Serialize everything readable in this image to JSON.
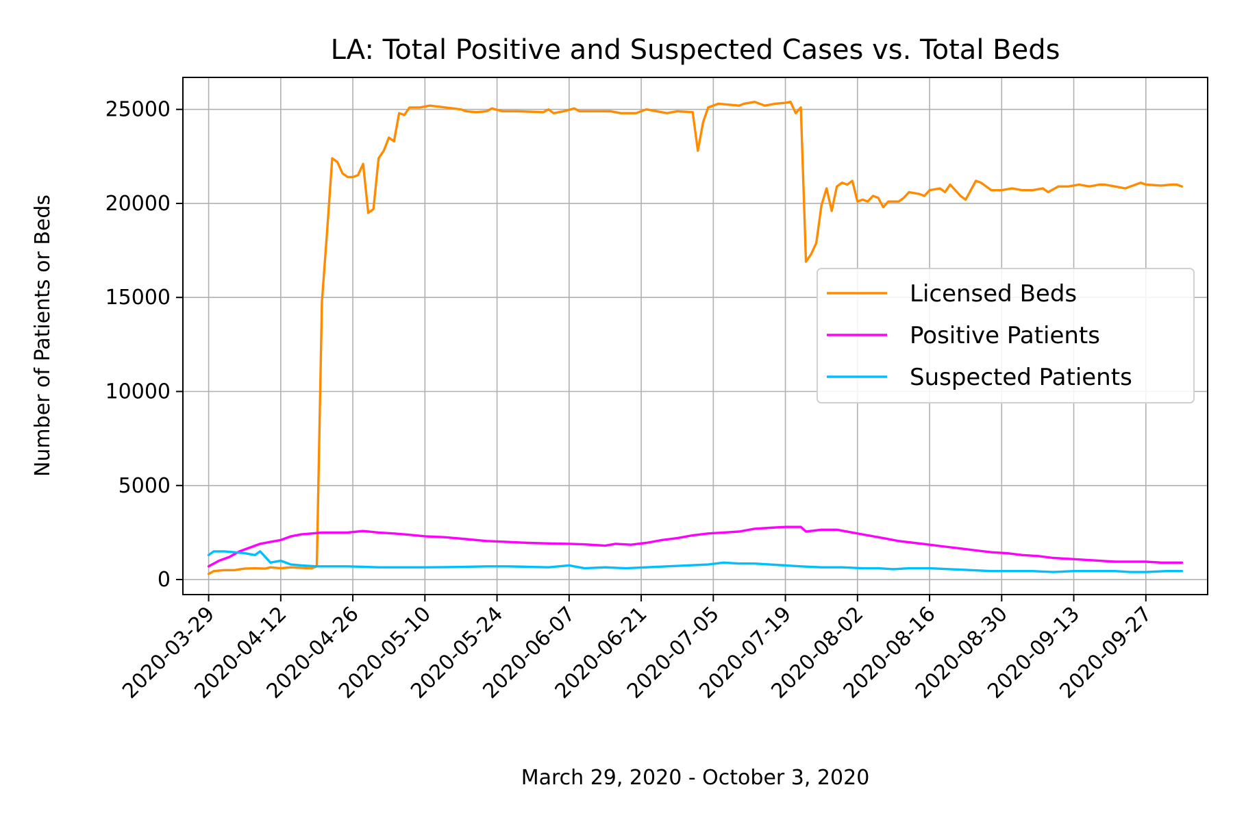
{
  "chart_data": {
    "type": "line",
    "title": "LA: Total Positive and Suspected Cases vs. Total Beds",
    "xlabel": "March 29, 2020 - October 3, 2020",
    "ylabel": "Number of Patients or Beds",
    "x_start": "2020-03-29",
    "x_end": "2020-10-04",
    "xlim": [
      "2020-03-24",
      "2020-10-09"
    ],
    "ylim": [
      -800,
      26700
    ],
    "x_ticks": [
      "2020-03-29",
      "2020-04-12",
      "2020-04-26",
      "2020-05-10",
      "2020-05-24",
      "2020-06-07",
      "2020-06-21",
      "2020-07-05",
      "2020-07-19",
      "2020-08-02",
      "2020-08-16",
      "2020-08-30",
      "2020-09-13",
      "2020-09-27"
    ],
    "y_ticks": [
      0,
      5000,
      10000,
      15000,
      20000,
      25000
    ],
    "grid": true,
    "legend_position": "center-right",
    "series": [
      {
        "name": "Licensed Beds",
        "color": "#ff8c00",
        "points": [
          [
            "2020-03-29",
            300
          ],
          [
            "2020-03-30",
            450
          ],
          [
            "2020-04-01",
            500
          ],
          [
            "2020-04-03",
            500
          ],
          [
            "2020-04-05",
            580
          ],
          [
            "2020-04-07",
            600
          ],
          [
            "2020-04-09",
            580
          ],
          [
            "2020-04-10",
            650
          ],
          [
            "2020-04-12",
            600
          ],
          [
            "2020-04-14",
            650
          ],
          [
            "2020-04-16",
            620
          ],
          [
            "2020-04-18",
            600
          ],
          [
            "2020-04-19",
            700
          ],
          [
            "2020-04-20",
            14800
          ],
          [
            "2020-04-21",
            18500
          ],
          [
            "2020-04-22",
            22400
          ],
          [
            "2020-04-23",
            22200
          ],
          [
            "2020-04-24",
            21600
          ],
          [
            "2020-04-25",
            21400
          ],
          [
            "2020-04-26",
            21400
          ],
          [
            "2020-04-27",
            21500
          ],
          [
            "2020-04-28",
            22100
          ],
          [
            "2020-04-29",
            19500
          ],
          [
            "2020-04-30",
            19700
          ],
          [
            "2020-05-01",
            22400
          ],
          [
            "2020-05-02",
            22800
          ],
          [
            "2020-05-03",
            23500
          ],
          [
            "2020-05-04",
            23300
          ],
          [
            "2020-05-05",
            24800
          ],
          [
            "2020-05-06",
            24700
          ],
          [
            "2020-05-07",
            25100
          ],
          [
            "2020-05-09",
            25100
          ],
          [
            "2020-05-11",
            25200
          ],
          [
            "2020-05-14",
            25100
          ],
          [
            "2020-05-17",
            25000
          ],
          [
            "2020-05-18",
            24900
          ],
          [
            "2020-05-20",
            24850
          ],
          [
            "2020-05-22",
            24900
          ],
          [
            "2020-05-23",
            25050
          ],
          [
            "2020-05-25",
            24900
          ],
          [
            "2020-05-28",
            24900
          ],
          [
            "2020-06-02",
            24850
          ],
          [
            "2020-06-03",
            25000
          ],
          [
            "2020-06-04",
            24800
          ],
          [
            "2020-06-06",
            24900
          ],
          [
            "2020-06-08",
            25050
          ],
          [
            "2020-06-09",
            24900
          ],
          [
            "2020-06-12",
            24900
          ],
          [
            "2020-06-15",
            24900
          ],
          [
            "2020-06-17",
            24800
          ],
          [
            "2020-06-20",
            24800
          ],
          [
            "2020-06-22",
            25000
          ],
          [
            "2020-06-24",
            24900
          ],
          [
            "2020-06-26",
            24800
          ],
          [
            "2020-06-28",
            24900
          ],
          [
            "2020-07-01",
            24850
          ],
          [
            "2020-07-02",
            22800
          ],
          [
            "2020-07-03",
            24300
          ],
          [
            "2020-07-04",
            25100
          ],
          [
            "2020-07-06",
            25300
          ],
          [
            "2020-07-08",
            25250
          ],
          [
            "2020-07-10",
            25200
          ],
          [
            "2020-07-11",
            25300
          ],
          [
            "2020-07-13",
            25400
          ],
          [
            "2020-07-15",
            25200
          ],
          [
            "2020-07-17",
            25300
          ],
          [
            "2020-07-19",
            25350
          ],
          [
            "2020-07-20",
            25400
          ],
          [
            "2020-07-21",
            24800
          ],
          [
            "2020-07-22",
            25100
          ],
          [
            "2020-07-23",
            16900
          ],
          [
            "2020-07-24",
            17300
          ],
          [
            "2020-07-25",
            17900
          ],
          [
            "2020-07-26",
            19900
          ],
          [
            "2020-07-27",
            20800
          ],
          [
            "2020-07-28",
            19600
          ],
          [
            "2020-07-29",
            20900
          ],
          [
            "2020-07-30",
            21100
          ],
          [
            "2020-07-31",
            21000
          ],
          [
            "2020-08-01",
            21200
          ],
          [
            "2020-08-02",
            20100
          ],
          [
            "2020-08-03",
            20200
          ],
          [
            "2020-08-04",
            20100
          ],
          [
            "2020-08-05",
            20400
          ],
          [
            "2020-08-06",
            20300
          ],
          [
            "2020-08-07",
            19800
          ],
          [
            "2020-08-08",
            20100
          ],
          [
            "2020-08-10",
            20100
          ],
          [
            "2020-08-11",
            20300
          ],
          [
            "2020-08-12",
            20600
          ],
          [
            "2020-08-14",
            20500
          ],
          [
            "2020-08-15",
            20400
          ],
          [
            "2020-08-16",
            20700
          ],
          [
            "2020-08-18",
            20800
          ],
          [
            "2020-08-19",
            20600
          ],
          [
            "2020-08-20",
            21000
          ],
          [
            "2020-08-21",
            20700
          ],
          [
            "2020-08-22",
            20400
          ],
          [
            "2020-08-23",
            20200
          ],
          [
            "2020-08-24",
            20700
          ],
          [
            "2020-08-25",
            21200
          ],
          [
            "2020-08-26",
            21100
          ],
          [
            "2020-08-28",
            20700
          ],
          [
            "2020-08-30",
            20700
          ],
          [
            "2020-09-01",
            20800
          ],
          [
            "2020-09-03",
            20700
          ],
          [
            "2020-09-05",
            20700
          ],
          [
            "2020-09-07",
            20800
          ],
          [
            "2020-09-08",
            20600
          ],
          [
            "2020-09-10",
            20900
          ],
          [
            "2020-09-12",
            20900
          ],
          [
            "2020-09-14",
            21000
          ],
          [
            "2020-09-16",
            20900
          ],
          [
            "2020-09-18",
            21000
          ],
          [
            "2020-09-19",
            21000
          ],
          [
            "2020-09-21",
            20900
          ],
          [
            "2020-09-23",
            20800
          ],
          [
            "2020-09-25",
            21000
          ],
          [
            "2020-09-26",
            21100
          ],
          [
            "2020-09-27",
            21000
          ],
          [
            "2020-09-30",
            20950
          ],
          [
            "2020-10-02",
            21000
          ],
          [
            "2020-10-03",
            21000
          ],
          [
            "2020-10-04",
            20900
          ]
        ]
      },
      {
        "name": "Positive Patients",
        "color": "#ff00ff",
        "points": [
          [
            "2020-03-29",
            700
          ],
          [
            "2020-03-31",
            1000
          ],
          [
            "2020-04-02",
            1200
          ],
          [
            "2020-04-04",
            1500
          ],
          [
            "2020-04-06",
            1700
          ],
          [
            "2020-04-08",
            1900
          ],
          [
            "2020-04-10",
            2000
          ],
          [
            "2020-04-12",
            2100
          ],
          [
            "2020-04-14",
            2300
          ],
          [
            "2020-04-16",
            2400
          ],
          [
            "2020-04-18",
            2450
          ],
          [
            "2020-04-20",
            2500
          ],
          [
            "2020-04-22",
            2500
          ],
          [
            "2020-04-25",
            2500
          ],
          [
            "2020-04-28",
            2580
          ],
          [
            "2020-05-01",
            2500
          ],
          [
            "2020-05-04",
            2450
          ],
          [
            "2020-05-07",
            2380
          ],
          [
            "2020-05-10",
            2300
          ],
          [
            "2020-05-14",
            2250
          ],
          [
            "2020-05-18",
            2150
          ],
          [
            "2020-05-22",
            2050
          ],
          [
            "2020-05-26",
            2000
          ],
          [
            "2020-05-30",
            1950
          ],
          [
            "2020-06-03",
            1920
          ],
          [
            "2020-06-07",
            1900
          ],
          [
            "2020-06-10",
            1870
          ],
          [
            "2020-06-14",
            1800
          ],
          [
            "2020-06-16",
            1900
          ],
          [
            "2020-06-19",
            1850
          ],
          [
            "2020-06-22",
            1950
          ],
          [
            "2020-06-25",
            2100
          ],
          [
            "2020-06-28",
            2200
          ],
          [
            "2020-07-01",
            2350
          ],
          [
            "2020-07-04",
            2450
          ],
          [
            "2020-07-07",
            2500
          ],
          [
            "2020-07-10",
            2550
          ],
          [
            "2020-07-13",
            2700
          ],
          [
            "2020-07-16",
            2750
          ],
          [
            "2020-07-19",
            2800
          ],
          [
            "2020-07-22",
            2800
          ],
          [
            "2020-07-23",
            2550
          ],
          [
            "2020-07-26",
            2650
          ],
          [
            "2020-07-29",
            2650
          ],
          [
            "2020-08-01",
            2500
          ],
          [
            "2020-08-04",
            2350
          ],
          [
            "2020-08-07",
            2200
          ],
          [
            "2020-08-10",
            2050
          ],
          [
            "2020-08-13",
            1950
          ],
          [
            "2020-08-16",
            1850
          ],
          [
            "2020-08-19",
            1750
          ],
          [
            "2020-08-22",
            1650
          ],
          [
            "2020-08-25",
            1550
          ],
          [
            "2020-08-28",
            1450
          ],
          [
            "2020-08-31",
            1400
          ],
          [
            "2020-09-03",
            1300
          ],
          [
            "2020-09-06",
            1250
          ],
          [
            "2020-09-09",
            1150
          ],
          [
            "2020-09-12",
            1100
          ],
          [
            "2020-09-15",
            1050
          ],
          [
            "2020-09-18",
            1000
          ],
          [
            "2020-09-21",
            950
          ],
          [
            "2020-09-24",
            950
          ],
          [
            "2020-09-27",
            950
          ],
          [
            "2020-09-30",
            900
          ],
          [
            "2020-10-04",
            900
          ]
        ]
      },
      {
        "name": "Suspected Patients",
        "color": "#00bfff",
        "points": [
          [
            "2020-03-29",
            1300
          ],
          [
            "2020-03-30",
            1500
          ],
          [
            "2020-04-01",
            1500
          ],
          [
            "2020-04-03",
            1450
          ],
          [
            "2020-04-05",
            1400
          ],
          [
            "2020-04-07",
            1300
          ],
          [
            "2020-04-08",
            1500
          ],
          [
            "2020-04-10",
            900
          ],
          [
            "2020-04-12",
            1000
          ],
          [
            "2020-04-14",
            800
          ],
          [
            "2020-04-16",
            750
          ],
          [
            "2020-04-19",
            700
          ],
          [
            "2020-04-22",
            700
          ],
          [
            "2020-04-25",
            700
          ],
          [
            "2020-04-28",
            680
          ],
          [
            "2020-05-01",
            650
          ],
          [
            "2020-05-04",
            650
          ],
          [
            "2020-05-07",
            650
          ],
          [
            "2020-05-10",
            650
          ],
          [
            "2020-05-14",
            660
          ],
          [
            "2020-05-18",
            680
          ],
          [
            "2020-05-22",
            700
          ],
          [
            "2020-05-26",
            700
          ],
          [
            "2020-05-30",
            680
          ],
          [
            "2020-06-03",
            650
          ],
          [
            "2020-06-07",
            750
          ],
          [
            "2020-06-10",
            600
          ],
          [
            "2020-06-14",
            650
          ],
          [
            "2020-06-18",
            600
          ],
          [
            "2020-06-22",
            650
          ],
          [
            "2020-06-26",
            700
          ],
          [
            "2020-06-30",
            750
          ],
          [
            "2020-07-04",
            800
          ],
          [
            "2020-07-07",
            900
          ],
          [
            "2020-07-10",
            850
          ],
          [
            "2020-07-13",
            850
          ],
          [
            "2020-07-16",
            800
          ],
          [
            "2020-07-19",
            750
          ],
          [
            "2020-07-22",
            700
          ],
          [
            "2020-07-26",
            650
          ],
          [
            "2020-07-30",
            650
          ],
          [
            "2020-08-03",
            600
          ],
          [
            "2020-08-06",
            600
          ],
          [
            "2020-08-09",
            550
          ],
          [
            "2020-08-12",
            600
          ],
          [
            "2020-08-16",
            600
          ],
          [
            "2020-08-20",
            550
          ],
          [
            "2020-08-24",
            500
          ],
          [
            "2020-08-28",
            450
          ],
          [
            "2020-09-01",
            450
          ],
          [
            "2020-09-05",
            450
          ],
          [
            "2020-09-09",
            400
          ],
          [
            "2020-09-13",
            450
          ],
          [
            "2020-09-17",
            450
          ],
          [
            "2020-09-21",
            450
          ],
          [
            "2020-09-24",
            400
          ],
          [
            "2020-09-27",
            400
          ],
          [
            "2020-10-01",
            450
          ],
          [
            "2020-10-04",
            450
          ]
        ]
      }
    ]
  }
}
